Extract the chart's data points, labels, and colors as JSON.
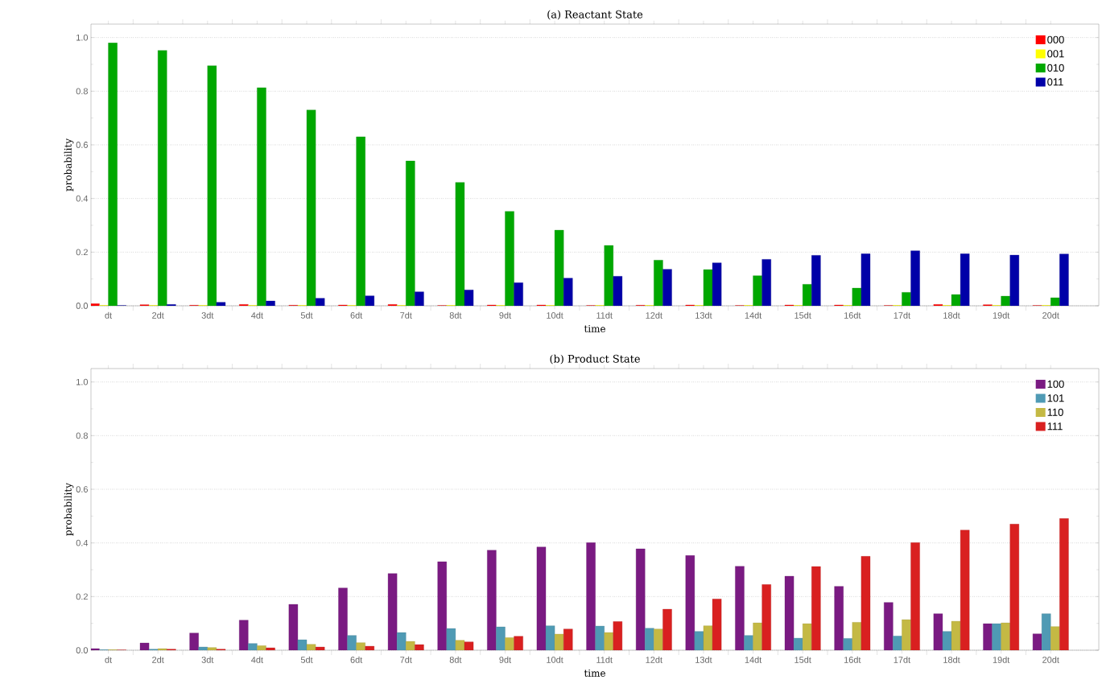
{
  "chart_data": [
    {
      "type": "bar",
      "title": "(a) Reactant State",
      "xlabel": "time",
      "ylabel": "probability",
      "categories": [
        "dt",
        "2dt",
        "3dt",
        "4dt",
        "5dt",
        "6dt",
        "7dt",
        "8dt",
        "9dt",
        "10dt",
        "11dt",
        "12dt",
        "13dt",
        "14dt",
        "15dt",
        "16dt",
        "17dt",
        "18dt",
        "19dt",
        "20dt"
      ],
      "series": [
        {
          "name": "000",
          "color": "#ff0000",
          "values": [
            0.008,
            0.004,
            0.002,
            0.005,
            0.002,
            0.003,
            0.005,
            0.001,
            0.003,
            0.003,
            0.001,
            0.002,
            0.003,
            0.001,
            0.003,
            0.003,
            0.001,
            0.005,
            0.004,
            0.001
          ]
        },
        {
          "name": "001",
          "color": "#ffff00",
          "values": [
            0.002,
            0.002,
            0.002,
            0.002,
            0.002,
            0.002,
            0.002,
            0.002,
            0.002,
            0.002,
            0.002,
            0.002,
            0.002,
            0.002,
            0.002,
            0.002,
            0.002,
            0.002,
            0.002,
            0.002
          ]
        },
        {
          "name": "010",
          "color": "#00a800",
          "values": [
            0.98,
            0.952,
            0.895,
            0.813,
            0.73,
            0.63,
            0.54,
            0.46,
            0.352,
            0.282,
            0.225,
            0.17,
            0.135,
            0.112,
            0.08,
            0.066,
            0.05,
            0.042,
            0.036,
            0.03
          ]
        },
        {
          "name": "011",
          "color": "#0000a8",
          "values": [
            0.001,
            0.005,
            0.013,
            0.018,
            0.028,
            0.037,
            0.052,
            0.059,
            0.086,
            0.103,
            0.11,
            0.136,
            0.16,
            0.173,
            0.188,
            0.194,
            0.205,
            0.194,
            0.189,
            0.193
          ]
        }
      ],
      "ylim": [
        0,
        1.05
      ],
      "yticks": [
        {
          "value": 0,
          "label": "0.0"
        },
        {
          "value": 0.2,
          "label": "0.2"
        },
        {
          "value": 0.4,
          "label": "0.4"
        },
        {
          "value": 0.6,
          "label": "0.6"
        },
        {
          "value": 0.8,
          "label": "0.8"
        },
        {
          "value": 1,
          "label": "1.0"
        }
      ],
      "grid": "y",
      "legend": "top right"
    },
    {
      "type": "bar",
      "title": "(b) Product State",
      "xlabel": "time",
      "ylabel": "probability",
      "categories": [
        "dt",
        "2dt",
        "3dt",
        "4dt",
        "5dt",
        "6dt",
        "7dt",
        "8dt",
        "9dt",
        "10dt",
        "11dt",
        "12dt",
        "13dt",
        "14dt",
        "15dt",
        "16dt",
        "17dt",
        "18dt",
        "19dt",
        "20dt"
      ],
      "series": [
        {
          "name": "100",
          "color": "#7a1a82",
          "values": [
            0.006,
            0.027,
            0.064,
            0.112,
            0.171,
            0.232,
            0.286,
            0.33,
            0.373,
            0.385,
            0.401,
            0.378,
            0.353,
            0.313,
            0.276,
            0.238,
            0.178,
            0.136,
            0.099,
            0.061
          ]
        },
        {
          "name": "101",
          "color": "#4f9ab4",
          "values": [
            0.002,
            0.004,
            0.012,
            0.025,
            0.039,
            0.055,
            0.066,
            0.081,
            0.087,
            0.091,
            0.09,
            0.082,
            0.07,
            0.055,
            0.045,
            0.044,
            0.053,
            0.07,
            0.099,
            0.136
          ]
        },
        {
          "name": "110",
          "color": "#c4b944",
          "values": [
            0.002,
            0.006,
            0.01,
            0.017,
            0.022,
            0.028,
            0.033,
            0.037,
            0.047,
            0.06,
            0.066,
            0.079,
            0.091,
            0.102,
            0.099,
            0.104,
            0.114,
            0.108,
            0.102,
            0.088
          ]
        },
        {
          "name": "111",
          "color": "#d92020",
          "values": [
            0.001,
            0.004,
            0.004,
            0.009,
            0.012,
            0.015,
            0.021,
            0.031,
            0.052,
            0.079,
            0.107,
            0.153,
            0.191,
            0.245,
            0.312,
            0.35,
            0.401,
            0.448,
            0.47,
            0.491
          ]
        }
      ],
      "ylim": [
        0,
        1.05
      ],
      "yticks": [
        {
          "value": 0,
          "label": "0.0"
        },
        {
          "value": 0.2,
          "label": "0.2"
        },
        {
          "value": 0.4,
          "label": "0.4"
        },
        {
          "value": 0.6,
          "label": "0.6"
        },
        {
          "value": 0.8,
          "label": "0.8"
        },
        {
          "value": 1,
          "label": "1.0"
        }
      ],
      "grid": "y",
      "legend": "top right"
    }
  ]
}
